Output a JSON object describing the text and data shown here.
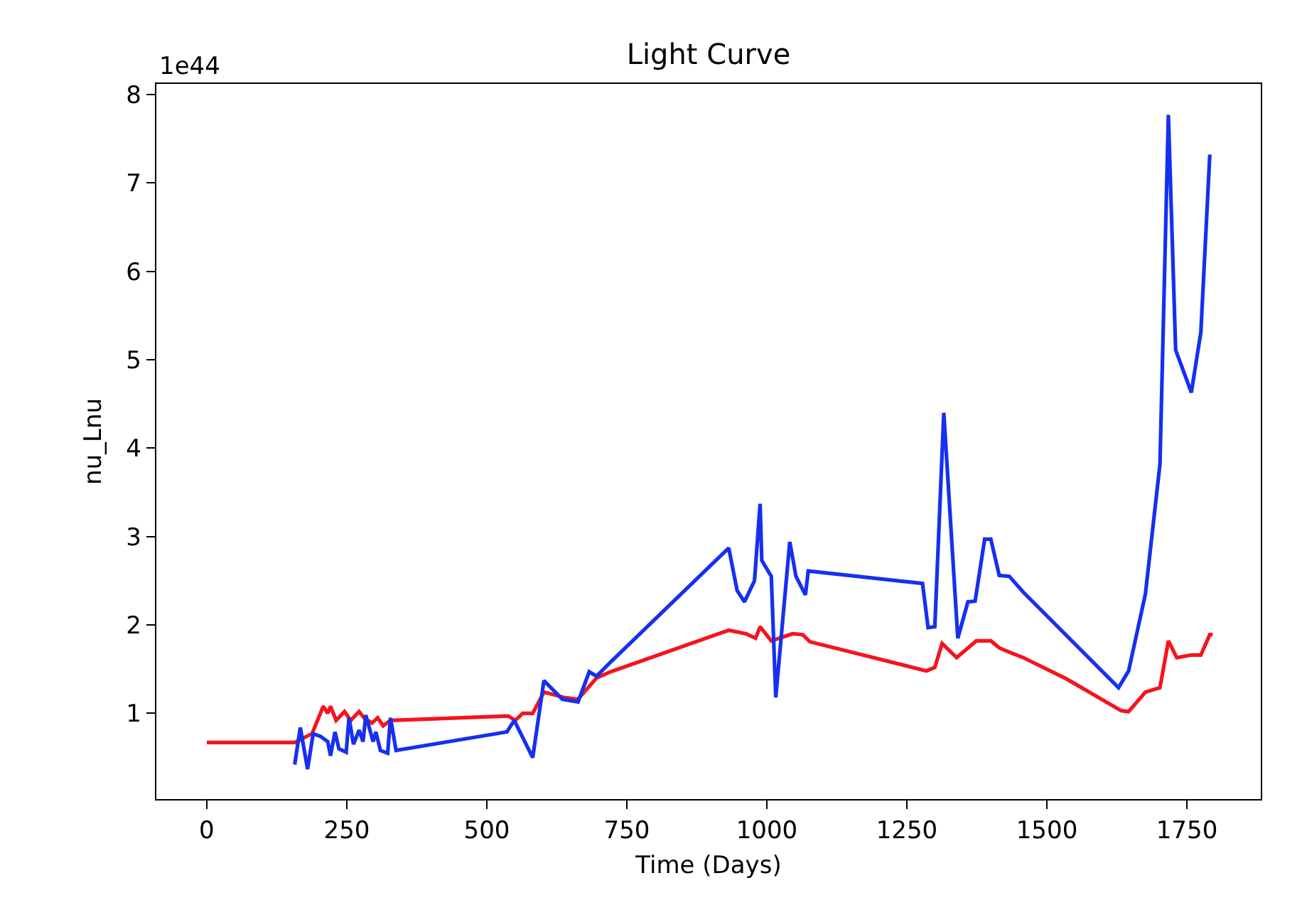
{
  "chart_data": {
    "type": "line",
    "title": "Light Curve",
    "xlabel": "Time (Days)",
    "ylabel": "nu_Lnu",
    "annotations": [
      "1e44"
    ],
    "xlim": [
      -90,
      1882
    ],
    "ylim": [
      0.03,
      8.12
    ],
    "xticks": [
      0,
      250,
      500,
      750,
      1000,
      1250,
      1500,
      1750
    ],
    "yticks": [
      1,
      2,
      3,
      4,
      5,
      6,
      7,
      8
    ],
    "line_style": "solid",
    "marker": "none",
    "series": [
      {
        "color": "#f5141e",
        "x": [
          0,
          157,
          188,
          208,
          216,
          221,
          231,
          246,
          257,
          272,
          282,
          295,
          305,
          315,
          328,
          538,
          551,
          564,
          582,
          602,
          638,
          663,
          696,
          721,
          932,
          963,
          980,
          988,
          1008,
          1046,
          1064,
          1077,
          1285,
          1300,
          1313,
          1339,
          1374,
          1400,
          1415,
          1438,
          1458,
          1535,
          1633,
          1646,
          1676,
          1702,
          1717,
          1732,
          1758,
          1775,
          1791,
          1796
        ],
        "values": [
          0.67,
          0.67,
          0.77,
          1.08,
          1.0,
          1.08,
          0.92,
          1.02,
          0.92,
          1.02,
          0.94,
          0.89,
          0.95,
          0.86,
          0.92,
          0.97,
          0.92,
          1.0,
          1.0,
          1.24,
          1.18,
          1.16,
          1.4,
          1.47,
          1.94,
          1.9,
          1.85,
          1.98,
          1.82,
          1.9,
          1.89,
          1.81,
          1.48,
          1.52,
          1.79,
          1.63,
          1.82,
          1.82,
          1.74,
          1.68,
          1.63,
          1.39,
          1.03,
          1.02,
          1.24,
          1.29,
          1.82,
          1.63,
          1.66,
          1.66,
          1.89,
          1.89
        ]
      },
      {
        "color": "#1530f0",
        "x": [
          157,
          167,
          180,
          190,
          203,
          216,
          221,
          229,
          236,
          249,
          254,
          262,
          272,
          279,
          284,
          297,
          302,
          310,
          323,
          328,
          338,
          536,
          549,
          582,
          602,
          635,
          663,
          683,
          696,
          721,
          932,
          947,
          960,
          978,
          988,
          991,
          1008,
          1016,
          1041,
          1052,
          1069,
          1074,
          1278,
          1288,
          1300,
          1316,
          1341,
          1359,
          1372,
          1389,
          1400,
          1415,
          1433,
          1458,
          1628,
          1646,
          1676,
          1702,
          1717,
          1730,
          1758,
          1775,
          1791
        ],
        "values": [
          0.42,
          0.84,
          0.37,
          0.77,
          0.74,
          0.68,
          0.52,
          0.79,
          0.6,
          0.56,
          0.95,
          0.65,
          0.81,
          0.68,
          0.98,
          0.68,
          0.79,
          0.58,
          0.55,
          0.95,
          0.58,
          0.79,
          0.92,
          0.5,
          1.37,
          1.16,
          1.13,
          1.47,
          1.42,
          1.58,
          2.87,
          2.39,
          2.26,
          2.5,
          3.37,
          2.73,
          2.55,
          1.18,
          2.94,
          2.55,
          2.34,
          2.61,
          2.47,
          1.97,
          1.98,
          4.4,
          1.85,
          2.26,
          2.27,
          2.97,
          2.97,
          2.56,
          2.55,
          2.37,
          1.29,
          1.48,
          2.35,
          3.82,
          7.77,
          5.11,
          4.63,
          5.31,
          7.32
        ]
      }
    ]
  }
}
